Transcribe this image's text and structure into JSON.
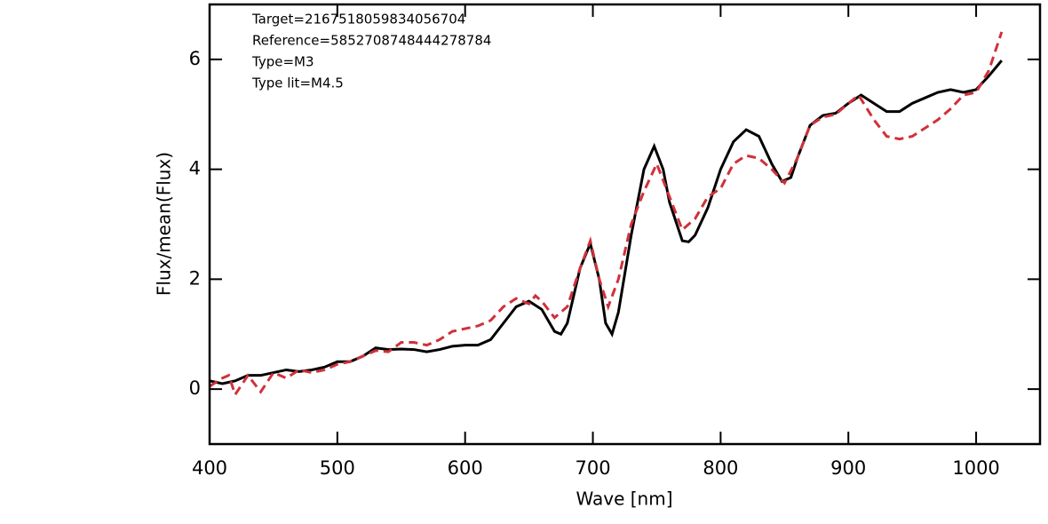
{
  "chart_data": {
    "type": "line",
    "xlabel": "Wave [nm]",
    "ylabel": "Flux/mean(Flux)",
    "annotations": [
      "Target=2167518059834056704",
      "Reference=5852708748444278784",
      "Type=M3",
      "Type lit=M4.5"
    ],
    "xlim": [
      400,
      1050
    ],
    "ylim": [
      -1,
      7
    ],
    "xticks": [
      400,
      500,
      600,
      700,
      800,
      900,
      1000
    ],
    "yticks": [
      0,
      2,
      4,
      6
    ],
    "series": [
      {
        "color": "#000000",
        "dash": "solid",
        "x": [
          400,
          410,
          420,
          430,
          440,
          450,
          460,
          470,
          480,
          490,
          500,
          510,
          520,
          530,
          540,
          550,
          560,
          570,
          580,
          590,
          600,
          610,
          620,
          630,
          640,
          650,
          660,
          670,
          675,
          680,
          690,
          698,
          705,
          710,
          715,
          720,
          730,
          740,
          748,
          755,
          760,
          770,
          775,
          780,
          790,
          800,
          810,
          820,
          830,
          840,
          848,
          855,
          860,
          870,
          880,
          890,
          900,
          910,
          920,
          930,
          940,
          950,
          960,
          970,
          980,
          990,
          1000,
          1010,
          1020
        ],
        "values": [
          0.15,
          0.1,
          0.15,
          0.25,
          0.25,
          0.3,
          0.35,
          0.32,
          0.35,
          0.4,
          0.5,
          0.5,
          0.6,
          0.75,
          0.72,
          0.73,
          0.72,
          0.68,
          0.72,
          0.78,
          0.8,
          0.8,
          0.9,
          1.2,
          1.5,
          1.6,
          1.45,
          1.05,
          1.0,
          1.2,
          2.2,
          2.65,
          2.0,
          1.2,
          1.0,
          1.4,
          2.8,
          4.0,
          4.42,
          4.0,
          3.4,
          2.7,
          2.68,
          2.8,
          3.3,
          4.0,
          4.5,
          4.72,
          4.6,
          4.1,
          3.78,
          3.85,
          4.2,
          4.8,
          4.98,
          5.02,
          5.2,
          5.35,
          5.2,
          5.05,
          5.05,
          5.2,
          5.3,
          5.4,
          5.45,
          5.4,
          5.45,
          5.7,
          5.98
        ]
      },
      {
        "color": "#d0313a",
        "dash": "dashed",
        "x": [
          400,
          410,
          415,
          420,
          430,
          440,
          450,
          460,
          470,
          480,
          490,
          500,
          510,
          520,
          530,
          540,
          550,
          560,
          570,
          580,
          590,
          600,
          610,
          620,
          630,
          640,
          650,
          655,
          660,
          670,
          680,
          690,
          698,
          705,
          712,
          720,
          730,
          740,
          750,
          760,
          770,
          780,
          790,
          800,
          810,
          820,
          830,
          840,
          850,
          860,
          870,
          880,
          890,
          900,
          908,
          920,
          930,
          940,
          950,
          960,
          970,
          980,
          990,
          1000,
          1010,
          1020
        ],
        "values": [
          0.05,
          0.2,
          0.25,
          -0.1,
          0.25,
          -0.05,
          0.3,
          0.2,
          0.35,
          0.3,
          0.35,
          0.45,
          0.5,
          0.6,
          0.7,
          0.68,
          0.85,
          0.85,
          0.8,
          0.9,
          1.05,
          1.1,
          1.15,
          1.25,
          1.5,
          1.65,
          1.55,
          1.7,
          1.6,
          1.3,
          1.5,
          2.2,
          2.7,
          2.0,
          1.5,
          2.0,
          3.0,
          3.6,
          4.1,
          3.5,
          2.9,
          3.1,
          3.5,
          3.65,
          4.1,
          4.25,
          4.2,
          4.0,
          3.75,
          4.2,
          4.8,
          4.95,
          5.0,
          5.2,
          5.35,
          4.9,
          4.6,
          4.55,
          4.6,
          4.75,
          4.9,
          5.1,
          5.35,
          5.4,
          5.8,
          6.5
        ]
      }
    ]
  }
}
